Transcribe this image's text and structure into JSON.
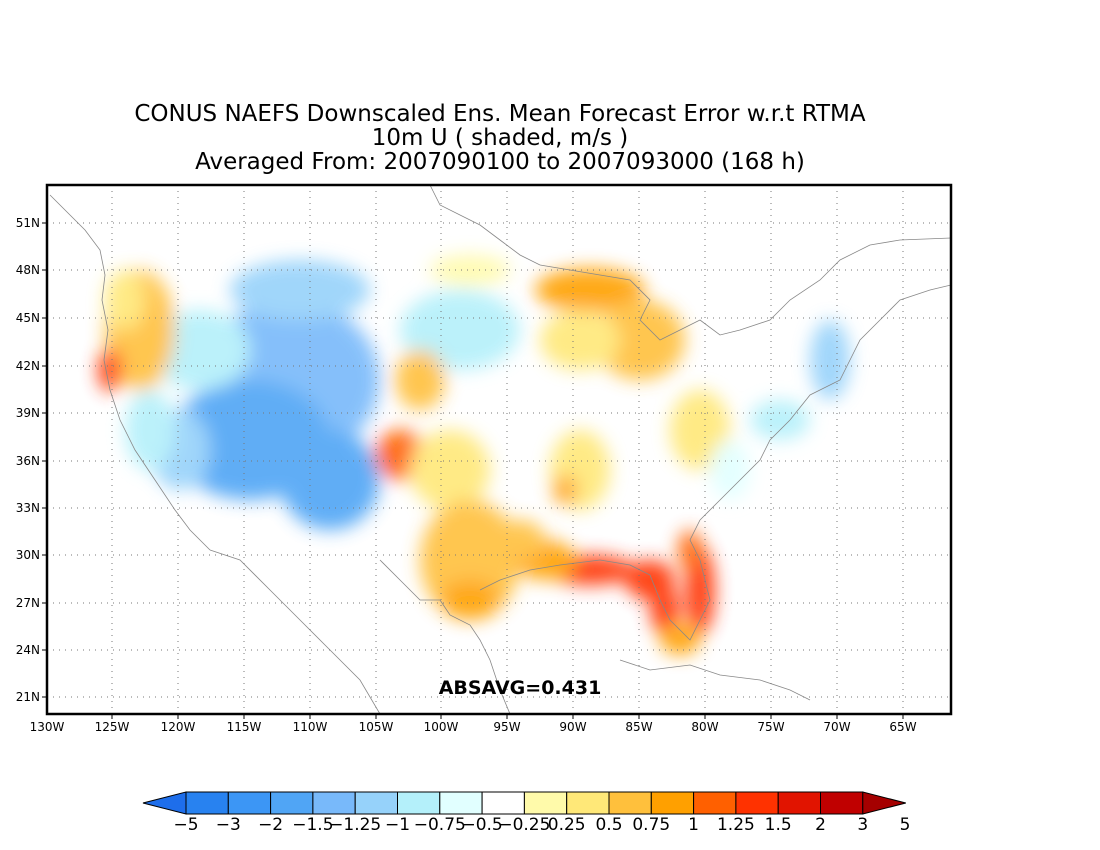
{
  "title_lines": [
    "CONUS NAEFS Downscaled Ens. Mean Forecast Error w.r.t RTMA",
    "10m U ( shaded, m/s )",
    "Averaged From: 2007090100 to 2007093000 (168 h)"
  ],
  "annotation": "ABSAVG=0.431",
  "lon_ticks": [
    "130W",
    "125W",
    "120W",
    "115W",
    "110W",
    "105W",
    "100W",
    "95W",
    "90W",
    "85W",
    "80W",
    "75W",
    "70W",
    "65W"
  ],
  "lat_ticks": [
    "51N",
    "48N",
    "45N",
    "42N",
    "39N",
    "36N",
    "33N",
    "30N",
    "27N",
    "24N",
    "21N"
  ],
  "colorbar": {
    "labels": [
      "-5",
      "-3",
      "-2",
      "-1.5",
      "-1.25",
      "-1",
      "-0.75",
      "-0.5",
      "-0.25",
      "0.25",
      "0.5",
      "0.75",
      "1",
      "1.25",
      "1.5",
      "2",
      "3",
      "5"
    ],
    "colors": [
      "#1e6eeb",
      "#2882f0",
      "#3c96f5",
      "#50a5f5",
      "#78b9fa",
      "#96d2fa",
      "#b4f0fa",
      "#e1ffff",
      "#ffffff",
      "#fffaaa",
      "#ffe878",
      "#ffc03c",
      "#ffa000",
      "#ff6000",
      "#ff3200",
      "#e11400",
      "#c00000",
      "#a50000"
    ]
  },
  "grid": "dotted",
  "map_extent": {
    "lon": [
      -130,
      -62
    ],
    "lat": [
      19.5,
      53
    ]
  }
}
